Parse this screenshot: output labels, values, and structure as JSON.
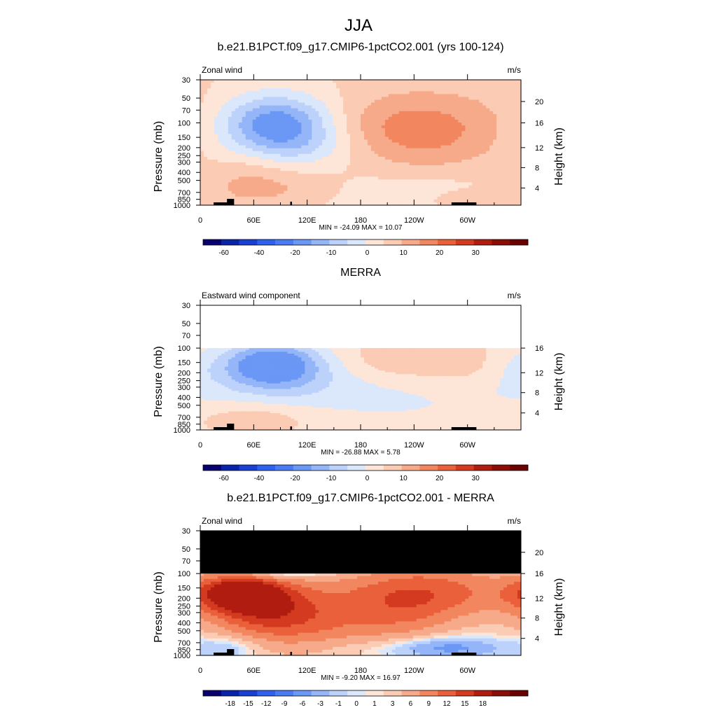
{
  "figure": {
    "title": "JJA"
  },
  "scales": {
    "full": {
      "labels": [
        "-60",
        "-40",
        "-20",
        "-10",
        "0",
        "10",
        "20",
        "30"
      ],
      "colors": [
        "#08006e",
        "#0a24a8",
        "#1a3fd3",
        "#2e62ee",
        "#4a7bf2",
        "#6b97f5",
        "#94b5f8",
        "#bcd2fa",
        "#dbe7fb",
        "#fde6d8",
        "#fbcbb4",
        "#f7aa8a",
        "#f2865f",
        "#e9603a",
        "#d33a20",
        "#b01c10",
        "#8a0d06",
        "#6a0000"
      ]
    },
    "diff": {
      "labels": [
        "-18",
        "-15",
        "-12",
        "-9",
        "-6",
        "-3",
        "-1",
        "0",
        "1",
        "3",
        "6",
        "9",
        "12",
        "15",
        "18"
      ],
      "colors": [
        "#08006e",
        "#0a24a8",
        "#1a3fd3",
        "#2e62ee",
        "#4a7bf2",
        "#6b97f5",
        "#94b5f8",
        "#bcd2fa",
        "#dbe7fb",
        "#fde6d8",
        "#fbcbb4",
        "#f7aa8a",
        "#f2865f",
        "#e9603a",
        "#d33a20",
        "#b01c10",
        "#8a0d06",
        "#6a0000"
      ]
    }
  },
  "chart_data": [
    {
      "type": "heatmap",
      "title": "b.e21.B1PCT.f09_g17.CMIP6-1pctCO2.001 (yrs 100-124)",
      "left_label": "Zonal wind",
      "units": "m/s",
      "ylabel": "Pressure (mb)",
      "ylabel_right": "Height (km)",
      "x_ticks": [
        "0",
        "60E",
        "120E",
        "180",
        "120W",
        "60W"
      ],
      "y_ticks": [
        "30",
        "50",
        "70",
        "100",
        "150",
        "200",
        "250",
        "300",
        "400",
        "500",
        "700",
        "850",
        "1000"
      ],
      "y2_ticks": [
        "20",
        "16",
        "12",
        "8",
        "4"
      ],
      "stats": "MIN = -24.09  MAX =  10.07",
      "min": -24.09,
      "max": 10.07,
      "scale": "full",
      "top_pressure": 30,
      "features": [
        {
          "lon": 85,
          "p": 100,
          "dlon": 45,
          "dp": 0.55,
          "amp": -24
        },
        {
          "lon": 100,
          "p": 200,
          "dlon": 60,
          "dp": 0.4,
          "amp": -8
        },
        {
          "lon": 265,
          "p": 120,
          "dlon": 75,
          "dp": 0.8,
          "amp": 9
        },
        {
          "lon": 220,
          "p": 130,
          "dlon": 55,
          "dp": 0.7,
          "amp": 5
        },
        {
          "lon": 80,
          "p": 650,
          "dlon": 60,
          "dp": 0.35,
          "amp": 6
        },
        {
          "lon": 60,
          "p": 300,
          "dlon": 30,
          "dp": 0.6,
          "amp": 4
        },
        {
          "lon": 220,
          "p": 700,
          "dlon": 90,
          "dp": 0.45,
          "amp": -4
        },
        {
          "lon": 300,
          "p": 850,
          "dlon": 40,
          "dp": 0.2,
          "amp": 4
        }
      ]
    },
    {
      "type": "heatmap",
      "title": "MERRA",
      "left_label": "Eastward wind component",
      "units": "m/s",
      "ylabel": "Pressure (mb)",
      "ylabel_right": "Height (km)",
      "x_ticks": [
        "0",
        "60E",
        "120E",
        "180",
        "120W",
        "60W"
      ],
      "y_ticks": [
        "30",
        "50",
        "70",
        "100",
        "150",
        "200",
        "250",
        "300",
        "400",
        "500",
        "700",
        "850",
        "1000"
      ],
      "y2_ticks": [
        "16",
        "12",
        "8",
        "4"
      ],
      "stats": "MIN = -26.88  MAX =   5.78",
      "min": -26.88,
      "max": 5.78,
      "scale": "full",
      "top_pressure": 100,
      "features": [
        {
          "lon": 80,
          "p": 155,
          "dlon": 40,
          "dp": 0.45,
          "amp": -26
        },
        {
          "lon": 90,
          "p": 300,
          "dlon": 70,
          "dp": 0.5,
          "amp": -6
        },
        {
          "lon": 240,
          "p": 450,
          "dlon": 120,
          "dp": 0.7,
          "amp": -5
        },
        {
          "lon": 215,
          "p": 150,
          "dlon": 35,
          "dp": 0.35,
          "amp": 4
        },
        {
          "lon": 300,
          "p": 170,
          "dlon": 45,
          "dp": 0.4,
          "amp": 4
        },
        {
          "lon": 60,
          "p": 700,
          "dlon": 50,
          "dp": 0.3,
          "amp": 5
        },
        {
          "lon": 350,
          "p": 170,
          "dlon": 25,
          "dp": 0.4,
          "amp": -4
        }
      ]
    },
    {
      "type": "heatmap",
      "title": "b.e21.B1PCT.f09_g17.CMIP6-1pctCO2.001 - MERRA",
      "left_label": "Zonal wind",
      "units": "m/s",
      "ylabel": "Pressure (mb)",
      "ylabel_right": "Height (km)",
      "x_ticks": [
        "0",
        "60E",
        "120E",
        "180",
        "120W",
        "60W"
      ],
      "y_ticks": [
        "30",
        "50",
        "70",
        "100",
        "150",
        "200",
        "250",
        "300",
        "400",
        "500",
        "700",
        "850",
        "1000"
      ],
      "y2_ticks": [
        "20",
        "16",
        "12",
        "8",
        "4"
      ],
      "stats": "MIN = -9.20  MAX =  16.97",
      "min": -9.2,
      "max": 16.97,
      "scale": "diff",
      "top_pressure": 30,
      "masked_above": 100,
      "features": [
        {
          "lon": 45,
          "p": 170,
          "dlon": 35,
          "dp": 0.35,
          "amp": 16
        },
        {
          "lon": 70,
          "p": 300,
          "dlon": 45,
          "dp": 0.55,
          "amp": 10
        },
        {
          "lon": 140,
          "p": 350,
          "dlon": 60,
          "dp": 0.9,
          "amp": 7
        },
        {
          "lon": 270,
          "p": 170,
          "dlon": 70,
          "dp": 0.6,
          "amp": 9
        },
        {
          "lon": 230,
          "p": 300,
          "dlon": 40,
          "dp": 0.8,
          "amp": 4
        },
        {
          "lon": 100,
          "p": 100,
          "dlon": 40,
          "dp": 0.1,
          "amp": -5
        },
        {
          "lon": 280,
          "p": 800,
          "dlon": 40,
          "dp": 0.2,
          "amp": -7
        },
        {
          "lon": 30,
          "p": 800,
          "dlon": 25,
          "dp": 0.25,
          "amp": -4
        },
        {
          "lon": 200,
          "p": 850,
          "dlon": 60,
          "dp": 0.25,
          "amp": -3
        }
      ]
    }
  ]
}
